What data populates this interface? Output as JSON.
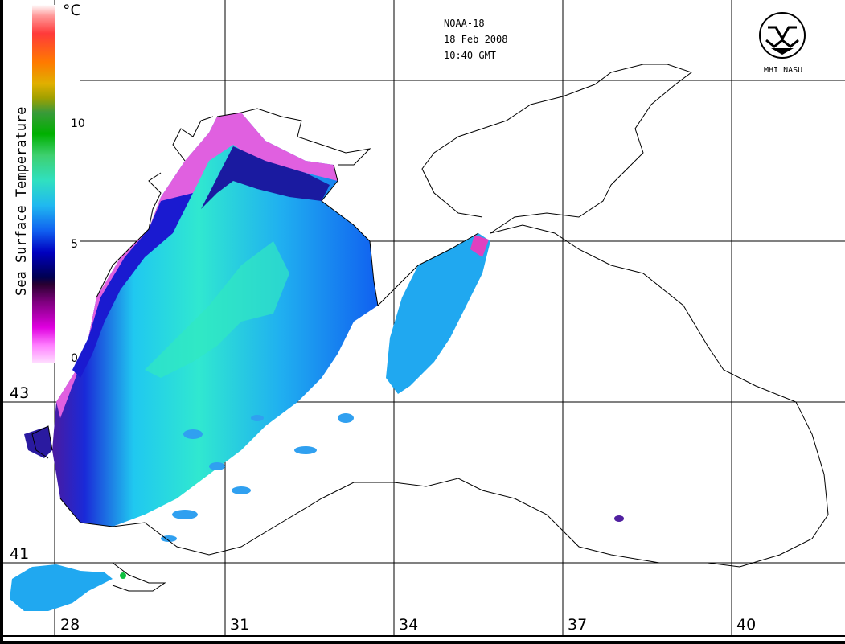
{
  "header": {
    "satellite": "NOAA-18",
    "date": "18 Feb 2008",
    "time": "10:40 GMT"
  },
  "legend": {
    "title": "Sea Surface Temperature",
    "unit": "°C",
    "ticks": [
      "10",
      "5",
      "0"
    ]
  },
  "latitudes": [
    "43",
    "41"
  ],
  "longitudes": [
    "28",
    "31",
    "34",
    "37",
    "40"
  ],
  "logo": {
    "label": "MHI NASU"
  },
  "colors": {
    "land": "#ffffff",
    "coast": "#000000",
    "grid": "#000000"
  }
}
